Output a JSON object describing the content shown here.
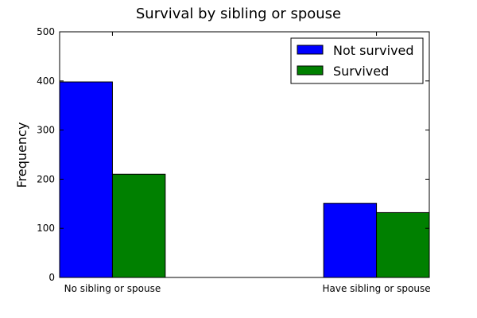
{
  "chart_data": {
    "type": "bar",
    "title": "Survival by sibling or spouse",
    "xlabel": "",
    "ylabel": "Frequency",
    "categories": [
      "No sibling or spouse",
      "Have sibling or spouse"
    ],
    "series": [
      {
        "name": "Not survived",
        "values": [
          398,
          151
        ],
        "color": "#0000ff"
      },
      {
        "name": "Survived",
        "values": [
          210,
          132
        ],
        "color": "#008000"
      }
    ],
    "ylim": [
      0,
      500
    ],
    "yticks": [
      0,
      100,
      200,
      300,
      400,
      500
    ],
    "grid": false,
    "legend": "top-right"
  }
}
